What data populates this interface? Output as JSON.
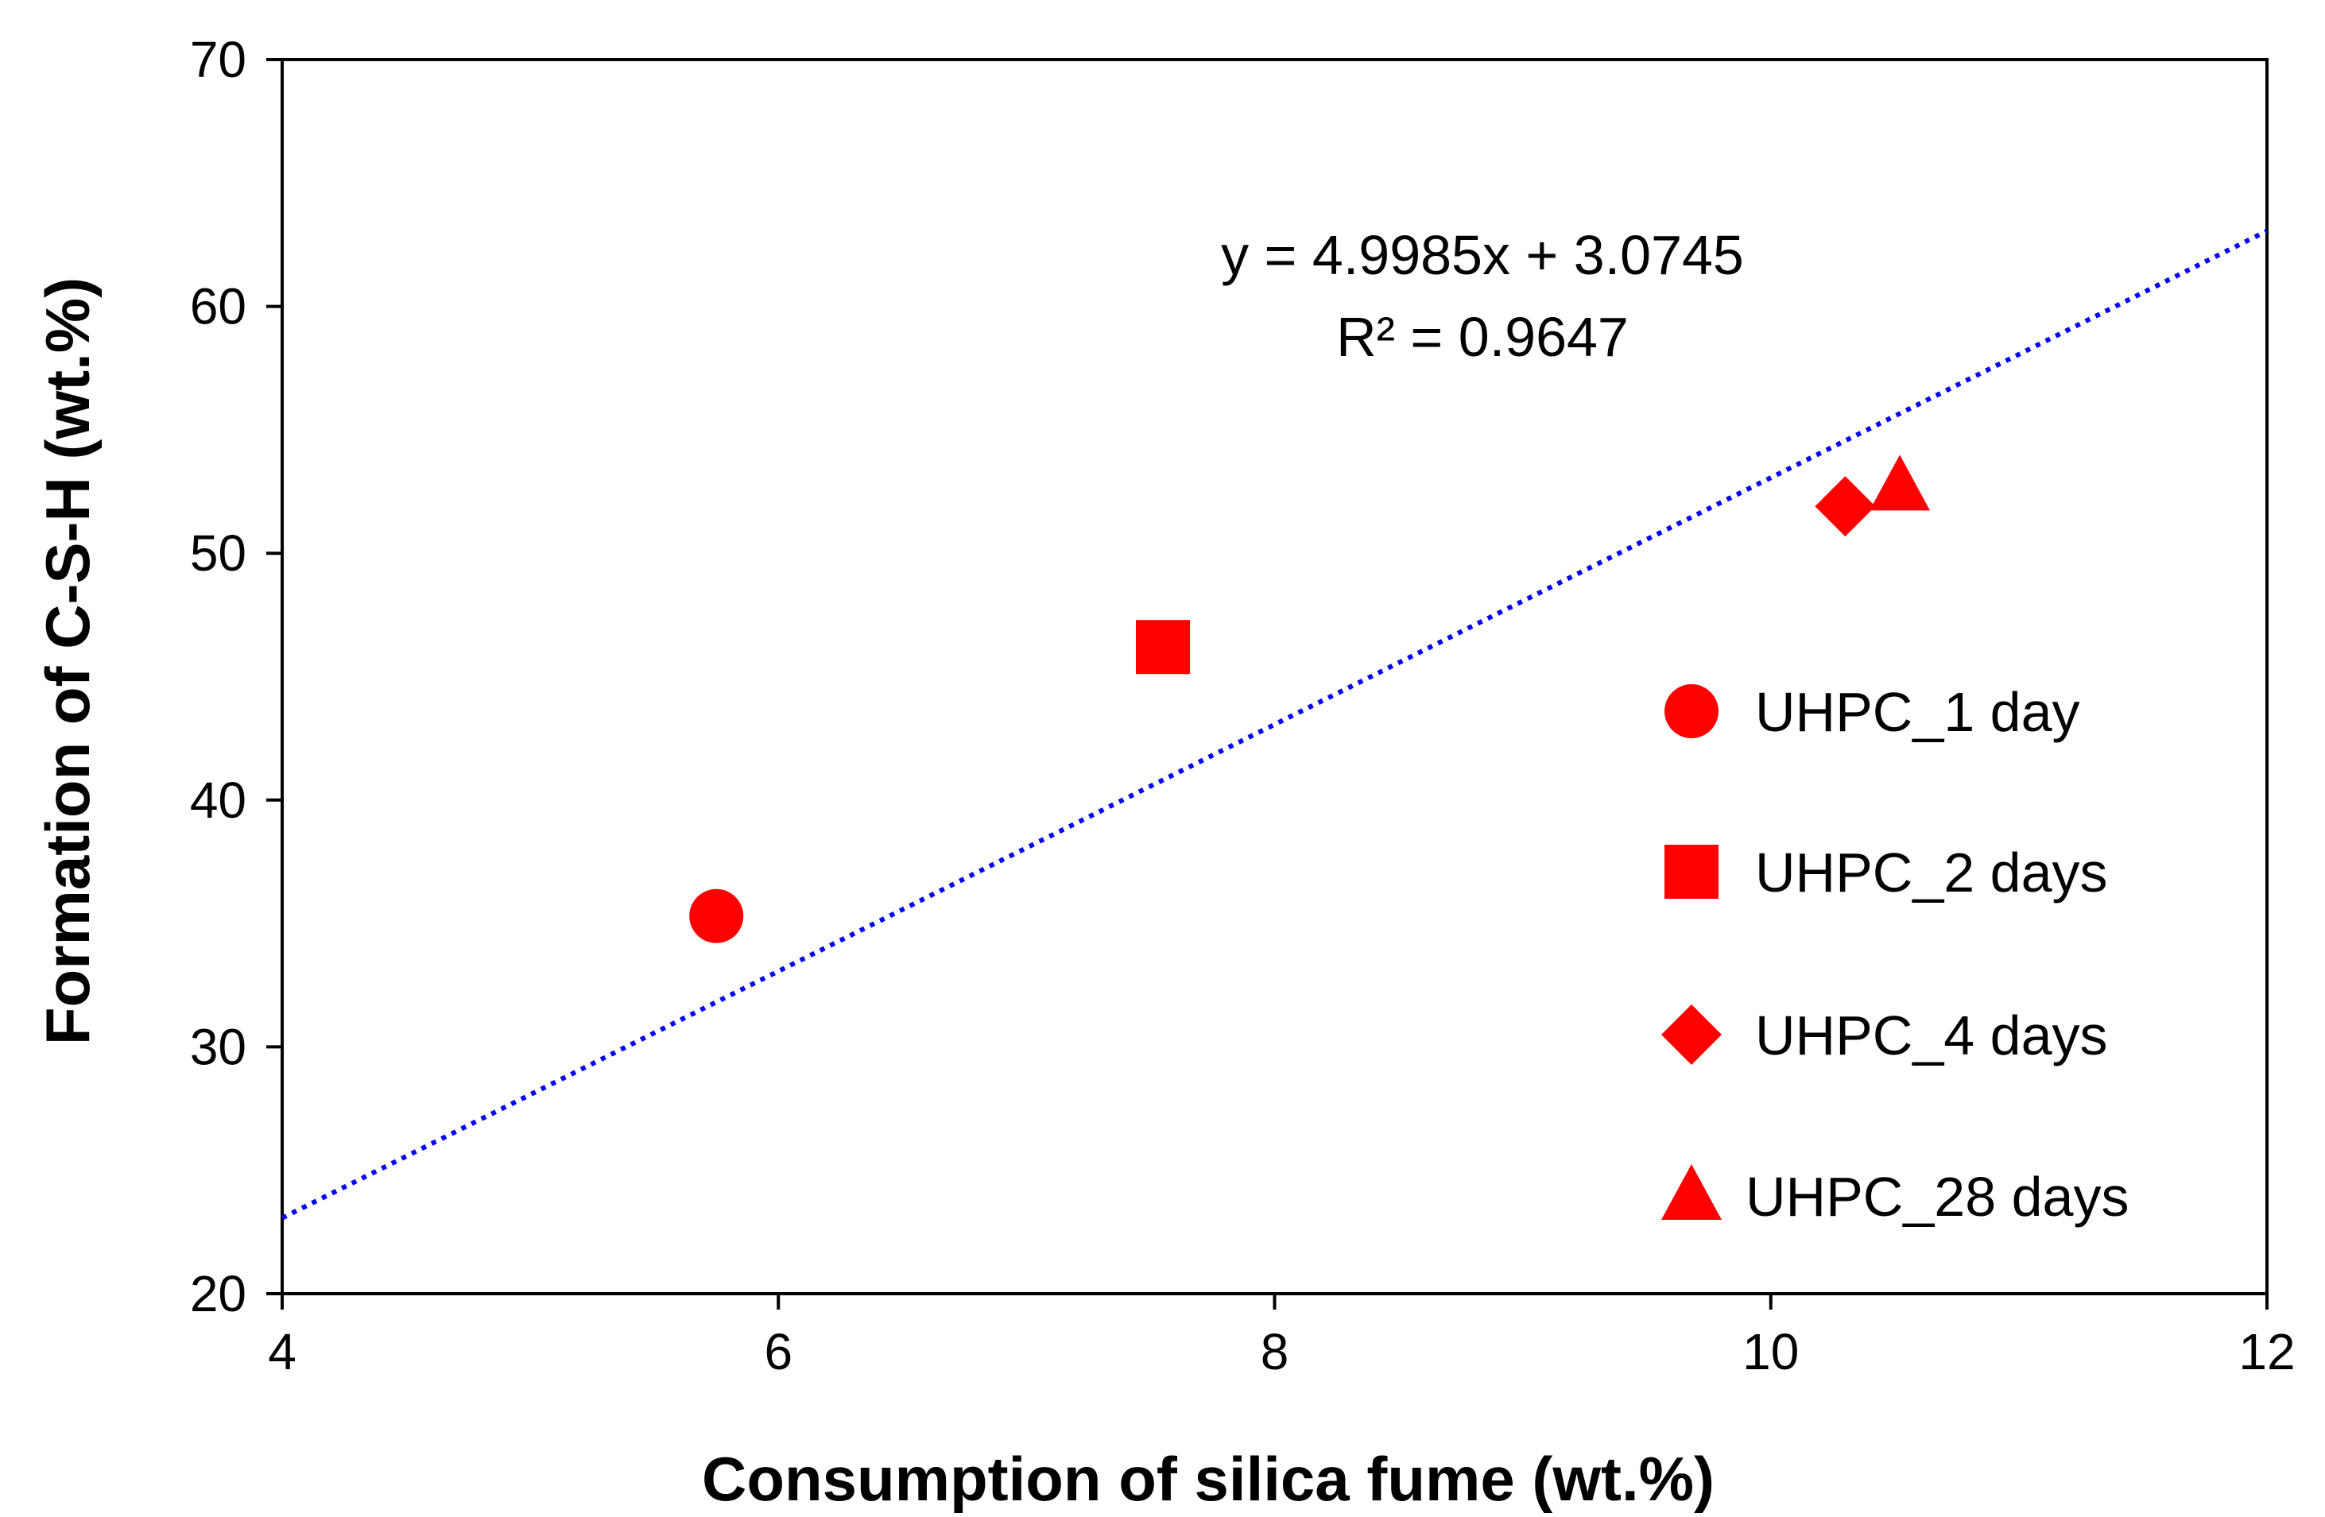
{
  "chart_data": {
    "type": "scatter",
    "title": "",
    "xlabel": "Consumption of silica fume (wt.%)",
    "ylabel": "Formation of C-S-H (wt.%)",
    "xlim": [
      4,
      12
    ],
    "ylim": [
      20,
      70
    ],
    "xticks": [
      4,
      6,
      8,
      10,
      12
    ],
    "yticks": [
      20,
      30,
      40,
      50,
      60,
      70
    ],
    "grid": false,
    "series": [
      {
        "name": "UHPC_1 day",
        "marker": "circle",
        "color": "#ff0000",
        "x": 5.75,
        "y": 35.3
      },
      {
        "name": "UHPC_2 days",
        "marker": "square",
        "color": "#ff0000",
        "x": 7.55,
        "y": 46.2
      },
      {
        "name": "UHPC_4 days",
        "marker": "diamond",
        "color": "#ff0000",
        "x": 10.3,
        "y": 51.9
      },
      {
        "name": "UHPC_28 days",
        "marker": "triangle",
        "color": "#ff0000",
        "x": 10.52,
        "y": 52.7
      }
    ],
    "trendline": {
      "slope": 4.9985,
      "intercept": 3.0745,
      "color": "#0000ff",
      "style": "dotted",
      "equation": "y = 4.9985x + 3.0745",
      "r2": "R² = 0.9647"
    },
    "legend_position": "right"
  }
}
